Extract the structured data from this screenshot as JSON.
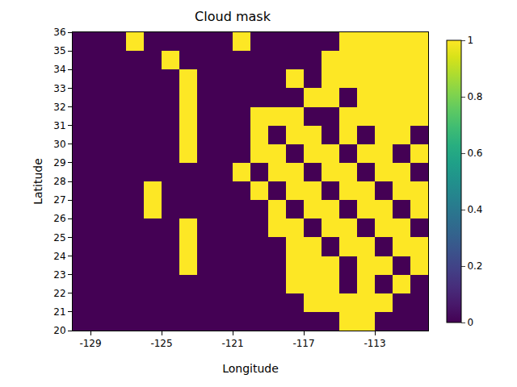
{
  "chart_data": {
    "type": "heatmap",
    "title": "Cloud mask",
    "x_label": "Longitude",
    "y_label": "Latitude",
    "x": [
      -129.5,
      -128.5,
      -127.5,
      -126.5,
      -125.5,
      -124.5,
      -123.5,
      -122.5,
      -121.5,
      -120.5,
      -119.5,
      -118.5,
      -117.5,
      -116.5,
      -115.5,
      -114.5,
      -113.5,
      -112.5,
      -111.5,
      -110.5
    ],
    "y": [
      35.5,
      34.5,
      33.5,
      32.5,
      31.5,
      30.5,
      29.5,
      28.5,
      27.5,
      26.5,
      25.5,
      24.5,
      23.5,
      22.5,
      21.5,
      20.5
    ],
    "cells": [
      [
        0,
        0,
        0,
        1,
        0,
        0,
        0,
        0,
        0,
        1,
        0,
        0,
        0,
        0,
        0,
        1,
        1,
        1,
        1,
        1
      ],
      [
        0,
        0,
        0,
        0,
        0,
        1,
        0,
        0,
        0,
        0,
        0,
        0,
        0,
        0,
        1,
        1,
        1,
        1,
        1,
        1
      ],
      [
        0,
        0,
        0,
        0,
        0,
        0,
        1,
        0,
        0,
        0,
        0,
        0,
        1,
        0,
        1,
        1,
        1,
        1,
        1,
        1
      ],
      [
        0,
        0,
        0,
        0,
        0,
        0,
        1,
        0,
        0,
        0,
        0,
        0,
        0,
        1,
        1,
        0,
        1,
        1,
        1,
        1
      ],
      [
        0,
        0,
        0,
        0,
        0,
        0,
        1,
        0,
        0,
        0,
        1,
        1,
        1,
        0,
        0,
        1,
        1,
        1,
        1,
        1
      ],
      [
        0,
        0,
        0,
        0,
        0,
        0,
        1,
        0,
        0,
        0,
        1,
        0,
        1,
        1,
        0,
        1,
        0,
        1,
        1,
        0
      ],
      [
        0,
        0,
        0,
        0,
        0,
        0,
        1,
        0,
        0,
        0,
        1,
        1,
        0,
        1,
        1,
        0,
        1,
        1,
        0,
        1
      ],
      [
        0,
        0,
        0,
        0,
        0,
        0,
        0,
        0,
        0,
        1,
        0,
        1,
        1,
        0,
        1,
        1,
        0,
        1,
        1,
        0
      ],
      [
        0,
        0,
        0,
        0,
        1,
        0,
        0,
        0,
        0,
        0,
        1,
        0,
        1,
        1,
        0,
        1,
        1,
        0,
        1,
        1
      ],
      [
        0,
        0,
        0,
        0,
        1,
        0,
        0,
        0,
        0,
        0,
        0,
        1,
        0,
        1,
        1,
        0,
        1,
        1,
        0,
        1
      ],
      [
        0,
        0,
        0,
        0,
        0,
        0,
        1,
        0,
        0,
        0,
        0,
        1,
        1,
        0,
        1,
        1,
        0,
        1,
        1,
        0
      ],
      [
        0,
        0,
        0,
        0,
        0,
        0,
        1,
        0,
        0,
        0,
        0,
        0,
        1,
        1,
        0,
        1,
        1,
        0,
        1,
        1
      ],
      [
        0,
        0,
        0,
        0,
        0,
        0,
        1,
        0,
        0,
        0,
        0,
        0,
        1,
        1,
        1,
        0,
        1,
        1,
        0,
        1
      ],
      [
        0,
        0,
        0,
        0,
        0,
        0,
        0,
        0,
        0,
        0,
        0,
        0,
        1,
        1,
        1,
        0,
        1,
        0,
        1,
        0
      ],
      [
        0,
        0,
        0,
        0,
        0,
        0,
        0,
        0,
        0,
        0,
        0,
        0,
        0,
        1,
        1,
        1,
        1,
        1,
        0,
        0
      ],
      [
        0,
        0,
        0,
        0,
        0,
        0,
        0,
        0,
        0,
        0,
        0,
        0,
        0,
        0,
        0,
        1,
        1,
        0,
        0,
        0
      ]
    ],
    "xlim": [
      -130,
      -110
    ],
    "xticks": [
      -129,
      -125,
      -121,
      -117,
      -113
    ],
    "ylim": [
      20,
      36
    ],
    "yticks": [
      20,
      21,
      22,
      23,
      24,
      25,
      26,
      27,
      28,
      29,
      30,
      31,
      32,
      33,
      34,
      35,
      36
    ],
    "colorbar_range": [
      0,
      1
    ],
    "colorbar_ticks": [
      0,
      0.2,
      0.4,
      0.6,
      0.8,
      1
    ],
    "grid": false
  }
}
